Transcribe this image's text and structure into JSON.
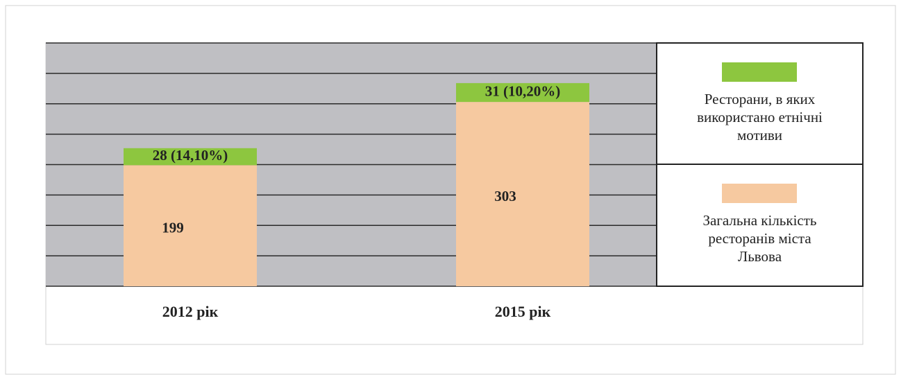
{
  "chart_data": {
    "type": "stacked_bar",
    "categories": [
      "2012 рік",
      "2015 рік"
    ],
    "series": [
      {
        "name": "Загальна кількість ресторанів міста Львова",
        "color": "#f6c9a0",
        "values": [
          199,
          303
        ]
      },
      {
        "name": "Ресторани, в яких використано етнічні мотиви",
        "color": "#8dc63f",
        "values": [
          28,
          31
        ],
        "value_labels": [
          "28 (14,10%)",
          "31 (10,20%)"
        ]
      }
    ],
    "ylim": [
      0,
      400
    ],
    "yticks": [
      0,
      50,
      100,
      150,
      200,
      250,
      300,
      350,
      400
    ],
    "grid": true,
    "plot_background": "#bfbfc3"
  }
}
